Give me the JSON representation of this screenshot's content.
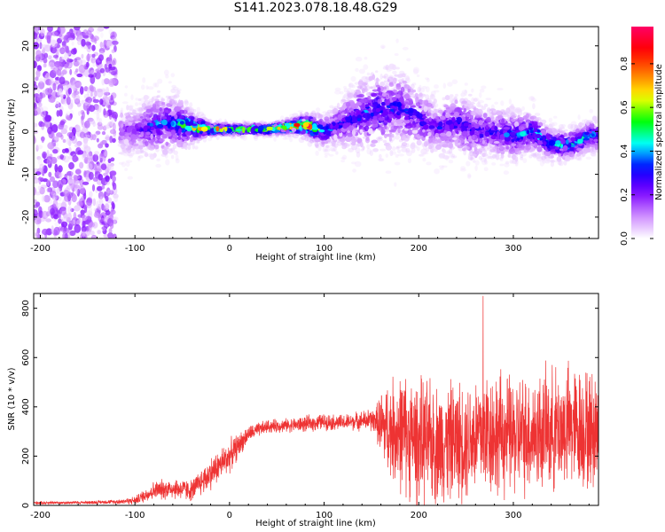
{
  "title": "S141.2023.078.18.48.G29",
  "colors": {
    "snr_line": "#ee3333",
    "colormap": [
      "#ffffff",
      "#cc88ff",
      "#7a00ff",
      "#0000ff",
      "#00ffff",
      "#00ff00",
      "#ffff00",
      "#ff7700",
      "#ff0000",
      "#ff0066"
    ]
  },
  "chart_data": [
    {
      "type": "heatmap",
      "xlabel": "Height of straight line (km)",
      "ylabel": "Frequency (Hz)",
      "xlim": [
        -207,
        390
      ],
      "ylim": [
        -25,
        24.5
      ],
      "xticks": [
        -200,
        -100,
        0,
        100,
        200,
        300
      ],
      "xtick_labels": [
        "-200",
        "-100",
        "0",
        "100",
        "200",
        "300"
      ],
      "yticks": [
        -20,
        -10,
        0,
        10,
        20
      ],
      "ytick_labels": [
        "-20",
        "-10",
        "0",
        "10",
        "20"
      ],
      "colorbar": {
        "label": "Normalized spectral amplitude",
        "range": [
          0,
          0.97
        ],
        "ticks": [
          0.0,
          0.2,
          0.4,
          0.6,
          0.8
        ],
        "tick_labels": [
          "0.0",
          "0.2",
          "0.4",
          "0.6",
          "0.8"
        ]
      },
      "ridge": {
        "x": [
          -115,
          -100,
          -80,
          -60,
          -40,
          -20,
          0,
          20,
          40,
          60,
          80,
          100,
          120,
          140,
          160,
          180,
          200,
          220,
          240,
          260,
          280,
          300,
          320,
          340,
          360,
          380,
          390
        ],
        "center": [
          0,
          0,
          1.5,
          2,
          1,
          0.5,
          0.5,
          0.5,
          0.5,
          1,
          1.5,
          0,
          2,
          4,
          5,
          5.5,
          3,
          1,
          2,
          0,
          0,
          -1,
          0,
          -3,
          -3,
          -1,
          -1
        ],
        "spread": [
          5,
          5,
          6,
          6,
          3,
          1.2,
          1,
          1,
          1,
          1.2,
          2,
          3,
          5,
          7,
          8,
          8,
          6,
          5,
          6,
          6,
          5,
          5,
          4,
          3,
          3,
          3,
          3
        ],
        "peak_amplitude": [
          0.2,
          0.2,
          0.35,
          0.35,
          0.6,
          0.7,
          0.65,
          0.65,
          0.65,
          0.75,
          0.9,
          0.4,
          0.3,
          0.35,
          0.35,
          0.3,
          0.3,
          0.3,
          0.3,
          0.3,
          0.3,
          0.35,
          0.4,
          0.45,
          0.45,
          0.4,
          0.4
        ]
      },
      "noise_region": {
        "x": [
          -207,
          -120
        ],
        "ylim": [
          -25,
          24.5
        ],
        "amplitude": [
          0.02,
          0.2
        ]
      }
    },
    {
      "type": "line",
      "xlabel": "Height of straight line (km)",
      "ylabel": "SNR (10 * v/v)",
      "xlim": [
        -207,
        390
      ],
      "ylim": [
        0,
        860
      ],
      "xticks": [
        -200,
        -100,
        0,
        100,
        200,
        300
      ],
      "xtick_labels": [
        "-200",
        "-100",
        "0",
        "100",
        "200",
        "300"
      ],
      "yticks": [
        0,
        200,
        400,
        600,
        800
      ],
      "ytick_labels": [
        "0",
        "200",
        "400",
        "600",
        "800"
      ],
      "envelope": {
        "x": [
          -207,
          -150,
          -120,
          -100,
          -80,
          -60,
          -40,
          -20,
          0,
          20,
          40,
          60,
          80,
          100,
          120,
          140,
          155,
          160,
          180,
          200,
          220,
          250,
          270,
          300,
          330,
          360,
          390
        ],
        "mean": [
          10,
          12,
          15,
          20,
          60,
          70,
          60,
          130,
          200,
          290,
          320,
          325,
          330,
          340,
          335,
          345,
          345,
          320,
          300,
          260,
          250,
          270,
          300,
          280,
          300,
          320,
          300
        ],
        "amplitude": [
          6,
          6,
          8,
          15,
          35,
          40,
          40,
          60,
          60,
          30,
          25,
          25,
          30,
          30,
          30,
          35,
          50,
          140,
          220,
          230,
          220,
          220,
          240,
          220,
          220,
          230,
          220
        ]
      },
      "peak_value": 850,
      "peak_x": 268
    }
  ]
}
